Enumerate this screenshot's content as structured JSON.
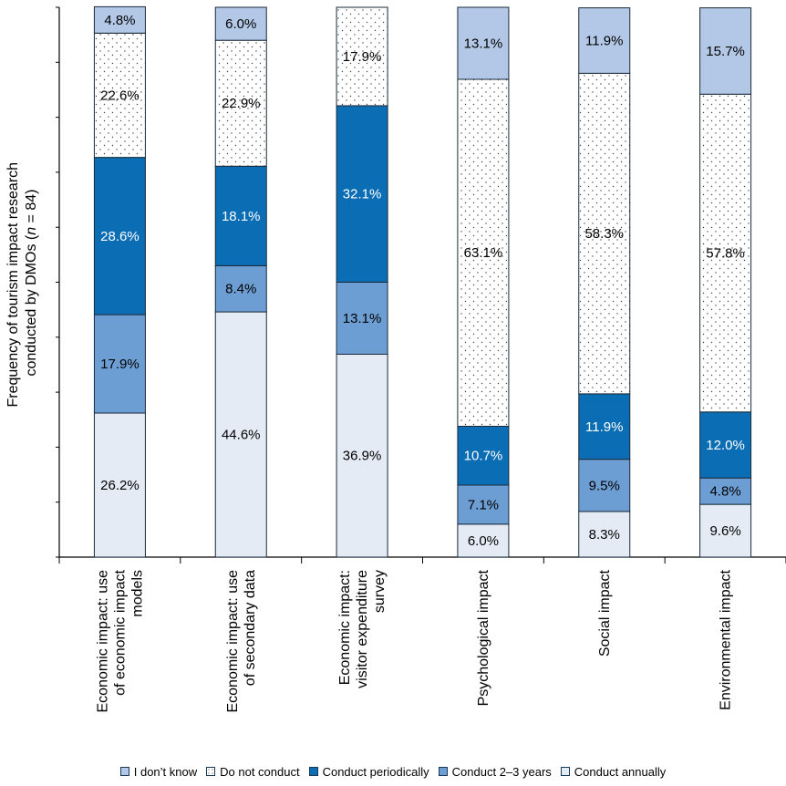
{
  "chart_data": {
    "type": "bar",
    "stacked": true,
    "ylabel_line1": "Frequency of tourism impact research",
    "ylabel_line2_prefix": "conducted by DMOs (",
    "ylabel_line2_n": "n",
    "ylabel_line2_suffix": " = 84)",
    "ylim": [
      0,
      100
    ],
    "grid": false,
    "legend_position": "bottom",
    "categories": [
      [
        "Economic impact: use",
        "of economic impact",
        "models"
      ],
      [
        "Economic impact: use",
        "of secondary data"
      ],
      [
        "Economic impact:",
        "visitor expenditure",
        "survey"
      ],
      [
        "Psychological impact"
      ],
      [
        "Social impact"
      ],
      [
        "Environmental impact"
      ]
    ],
    "series": [
      {
        "name": "Conduct annually",
        "color": "#e4ebf5",
        "pattern": "solid",
        "text_color": "#000000",
        "values": [
          26.2,
          44.6,
          36.9,
          6.0,
          8.3,
          9.6
        ],
        "labels": [
          "26.2%",
          "44.6%",
          "36.9%",
          "6.0%",
          "8.3%",
          "9.6%"
        ]
      },
      {
        "name": "Conduct 2–3 years",
        "color": "#6d9ed3",
        "pattern": "solid",
        "text_color": "#000000",
        "values": [
          17.9,
          8.4,
          13.1,
          7.1,
          9.5,
          4.8
        ],
        "labels": [
          "17.9%",
          "8.4%",
          "13.1%",
          "7.1%",
          "9.5%",
          "4.8%"
        ]
      },
      {
        "name": "Conduct periodically",
        "color": "#0b6db3",
        "pattern": "solid",
        "text_color": "#ffffff",
        "values": [
          28.6,
          18.1,
          32.1,
          10.7,
          11.9,
          12.0
        ],
        "labels": [
          "28.6%",
          "18.1%",
          "32.1%",
          "10.7%",
          "11.9%",
          "12.0%"
        ]
      },
      {
        "name": "Do not conduct",
        "color": "#ffffff",
        "pattern": "dots",
        "text_color": "#000000",
        "values": [
          22.6,
          22.9,
          17.9,
          63.1,
          58.3,
          57.8
        ],
        "labels": [
          "22.6%",
          "22.9%",
          "17.9%",
          "63.1%",
          "58.3%",
          "57.8%"
        ]
      },
      {
        "name": "I don’t know",
        "color": "#b3c8e6",
        "pattern": "solid",
        "text_color": "#000000",
        "values": [
          4.8,
          6.0,
          0,
          13.1,
          11.9,
          15.7
        ],
        "labels": [
          "4.8%",
          "6.0%",
          "",
          "13.1%",
          "11.9%",
          "15.7%"
        ]
      }
    ],
    "legend_order": [
      "I don’t know",
      "Do not conduct",
      "Conduct periodically",
      "Conduct 2–3 years",
      "Conduct annually"
    ]
  }
}
